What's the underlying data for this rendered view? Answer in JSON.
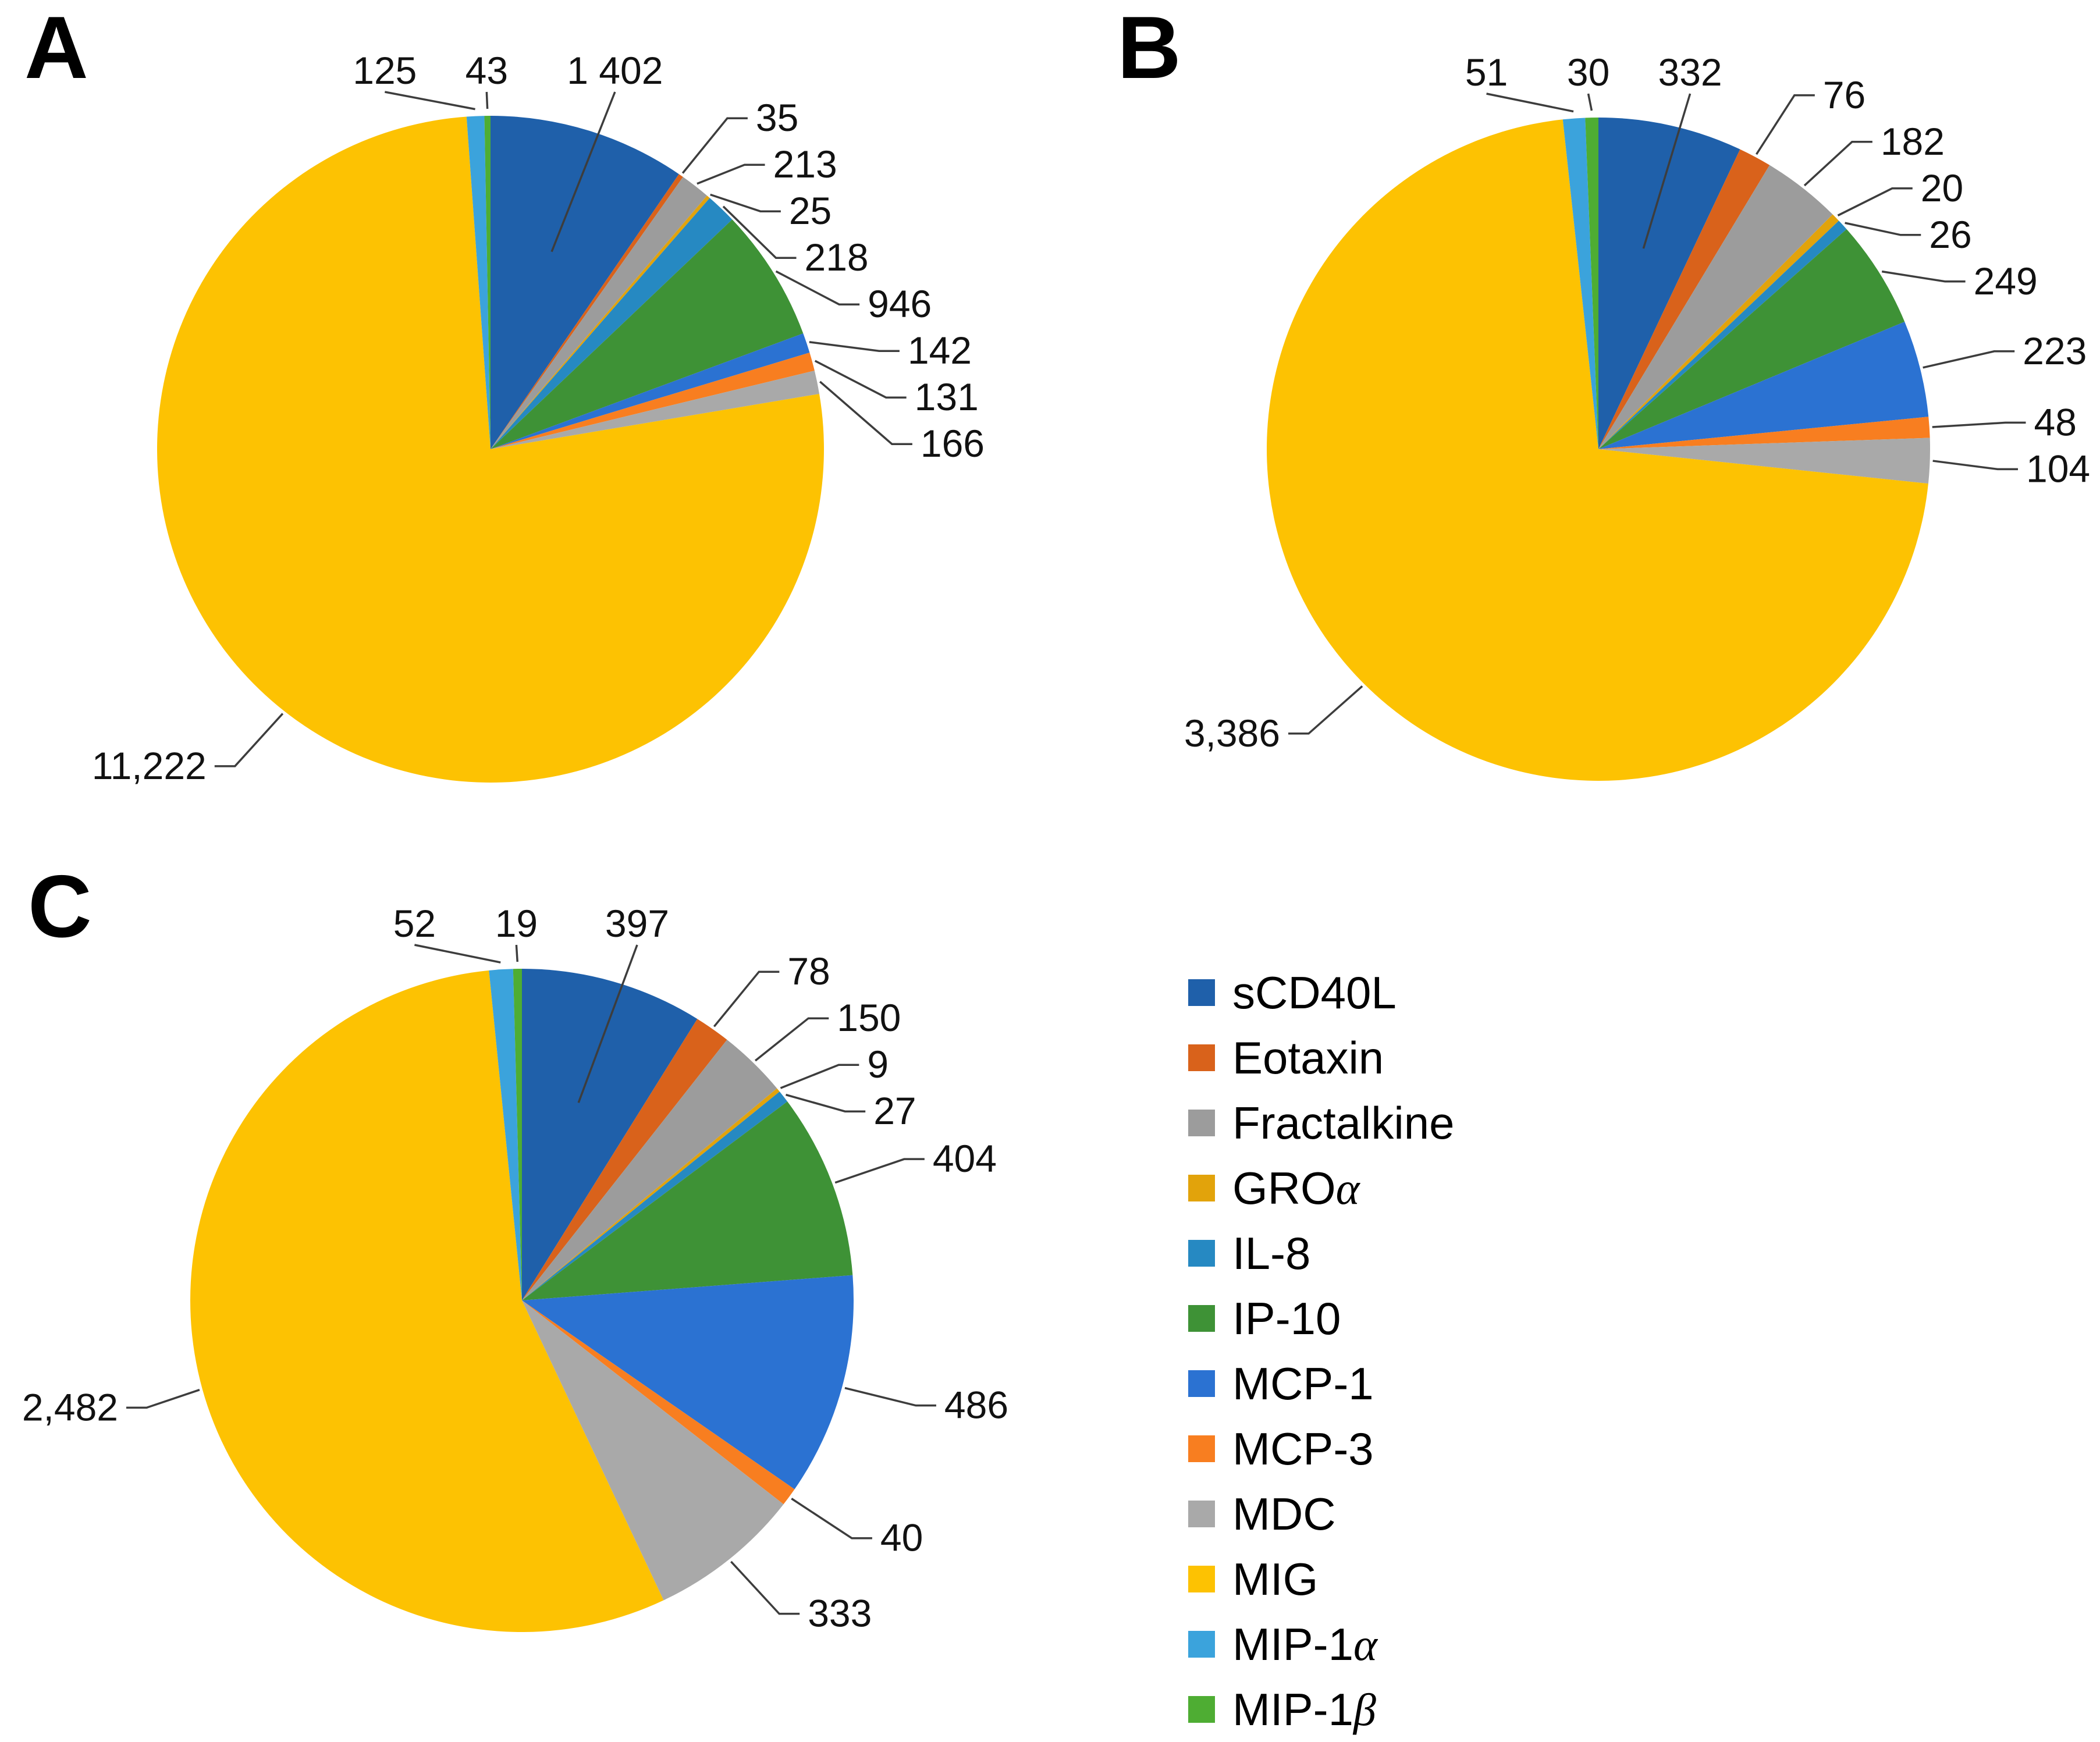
{
  "figure": {
    "background": "#ffffff",
    "panels": [
      {
        "label": "A"
      },
      {
        "label": "B"
      },
      {
        "label": "C"
      }
    ]
  },
  "legend": {
    "items": [
      {
        "name": "sCD40L",
        "text": "sCD40L",
        "greek": "",
        "color": "#1F60AA"
      },
      {
        "name": "Eotaxin",
        "text": "Eotaxin",
        "greek": "",
        "color": "#D9621B"
      },
      {
        "name": "Fractalkine",
        "text": "Fractalkine",
        "greek": "",
        "color": "#9C9C9C"
      },
      {
        "name": "GRO-alpha",
        "text": "GRO",
        "greek": "α",
        "color": "#E2A30B"
      },
      {
        "name": "IL-8",
        "text": "IL-8",
        "greek": "",
        "color": "#2689C2"
      },
      {
        "name": "IP-10",
        "text": "IP-10",
        "greek": "",
        "color": "#3E9236"
      },
      {
        "name": "MCP-1",
        "text": "MCP-1",
        "greek": "",
        "color": "#2B72D2"
      },
      {
        "name": "MCP-3",
        "text": "MCP-3",
        "greek": "",
        "color": "#F87E20"
      },
      {
        "name": "MDC",
        "text": "MDC",
        "greek": "",
        "color": "#A9A9A9"
      },
      {
        "name": "MIG",
        "text": "MIG",
        "greek": "",
        "color": "#FDC202"
      },
      {
        "name": "MIP-1alpha",
        "text": "MIP-1",
        "greek": "α",
        "color": "#3BA3DC"
      },
      {
        "name": "MIP-1beta",
        "text": "MIP-1",
        "greek": "β",
        "color": "#4EAD33"
      }
    ]
  },
  "chart_data": [
    {
      "type": "pie",
      "panel": "A",
      "rotation": "clockwise-from-12-oclock",
      "legend_position": "shared, right of panel C",
      "categories": [
        "sCD40L",
        "Eotaxin",
        "Fractalkine",
        "GROα",
        "IL-8",
        "IP-10",
        "MCP-1",
        "MCP-3",
        "MDC",
        "MIG",
        "MIP-1α",
        "MIP-1β"
      ],
      "values": [
        1402,
        35,
        213,
        25,
        218,
        946,
        142,
        131,
        166,
        11222,
        125,
        43
      ],
      "labels": [
        "1 402",
        "35",
        "213",
        "25",
        "218",
        "946",
        "142",
        "131",
        "166",
        "11,222",
        "125",
        "43"
      ],
      "colors": [
        "#1F60AA",
        "#D9621B",
        "#9C9C9C",
        "#E2A30B",
        "#2689C2",
        "#3E9236",
        "#2B72D2",
        "#F87E20",
        "#A9A9A9",
        "#FDC202",
        "#3BA3DC",
        "#4EAD33"
      ]
    },
    {
      "type": "pie",
      "panel": "B",
      "rotation": "clockwise-from-12-oclock",
      "legend_position": "shared, right of panel C",
      "categories": [
        "sCD40L",
        "Eotaxin",
        "Fractalkine",
        "GROα",
        "IL-8",
        "IP-10",
        "MCP-1",
        "MCP-3",
        "MDC",
        "MIG",
        "MIP-1α",
        "MIP-1β"
      ],
      "values": [
        332,
        76,
        182,
        20,
        26,
        249,
        223,
        48,
        104,
        3386,
        51,
        30
      ],
      "labels": [
        "332",
        "76",
        "182",
        "20",
        "26",
        "249",
        "223",
        "48",
        "104",
        "3,386",
        "51",
        "30"
      ],
      "colors": [
        "#1F60AA",
        "#D9621B",
        "#9C9C9C",
        "#E2A30B",
        "#2689C2",
        "#3E9236",
        "#2B72D2",
        "#F87E20",
        "#A9A9A9",
        "#FDC202",
        "#3BA3DC",
        "#4EAD33"
      ]
    },
    {
      "type": "pie",
      "panel": "C",
      "rotation": "clockwise-from-12-oclock",
      "legend_position": "shared, right of panel C",
      "categories": [
        "sCD40L",
        "Eotaxin",
        "Fractalkine",
        "GROα",
        "IL-8",
        "IP-10",
        "MCP-1",
        "MCP-3",
        "MDC",
        "MIG",
        "MIP-1α",
        "MIP-1β"
      ],
      "values": [
        397,
        78,
        150,
        9,
        27,
        404,
        486,
        40,
        333,
        2482,
        52,
        19
      ],
      "labels": [
        "397",
        "78",
        "150",
        "9",
        "27",
        "404",
        "486",
        "40",
        "333",
        "2,482",
        "52",
        "19"
      ],
      "colors": [
        "#1F60AA",
        "#D9621B",
        "#9C9C9C",
        "#E2A30B",
        "#2689C2",
        "#3E9236",
        "#2B72D2",
        "#F87E20",
        "#A9A9A9",
        "#FDC202",
        "#3BA3DC",
        "#4EAD33"
      ]
    }
  ]
}
